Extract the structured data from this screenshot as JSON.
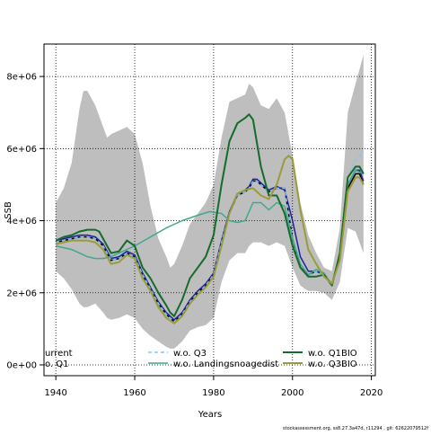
{
  "chart_data": {
    "type": "line",
    "xlabel": "Years",
    "ylabel": "SSB",
    "xlim": [
      1937,
      2021
    ],
    "ylim": [
      -300000,
      8900000
    ],
    "x_ticks": [
      {
        "value": 1940,
        "label": "1940"
      },
      {
        "value": 1960,
        "label": "1960"
      },
      {
        "value": 1980,
        "label": "1980"
      },
      {
        "value": 2000,
        "label": "2000"
      },
      {
        "value": 2020,
        "label": "2020"
      }
    ],
    "y_ticks": [
      {
        "value": 0,
        "label": "0e+00"
      },
      {
        "value": 2000000,
        "label": "2e+06"
      },
      {
        "value": 4000000,
        "label": "4e+06"
      },
      {
        "value": 6000000,
        "label": "6e+06"
      },
      {
        "value": 8000000,
        "label": "8e+06"
      }
    ],
    "grid": true,
    "legend_position": "bottom",
    "footer": "stockassessment.org, ss8.27.3a47d, r11294 , git: 62622079512f",
    "band": {
      "color": "#bebebe",
      "x": [
        1940,
        1942,
        1944,
        1946,
        1947,
        1948,
        1950,
        1952,
        1953,
        1954,
        1956,
        1958,
        1960,
        1962,
        1964,
        1966,
        1968,
        1969,
        1970,
        1972,
        1974,
        1976,
        1978,
        1980,
        1982,
        1984,
        1986,
        1988,
        1989,
        1990,
        1992,
        1994,
        1996,
        1998,
        2000,
        2002,
        2004,
        2006,
        2008,
        2010,
        2012,
        2014,
        2016,
        2018
      ],
      "upper": [
        4500000,
        4900000,
        5600000,
        7100000,
        7600000,
        7600000,
        7200000,
        6600000,
        6300000,
        6400000,
        6500000,
        6600000,
        6400000,
        5600000,
        4400000,
        3500000,
        3000000,
        2700000,
        2800000,
        3300000,
        3900000,
        4200000,
        4500000,
        5000000,
        6300000,
        7300000,
        7400000,
        7500000,
        7800000,
        7700000,
        7200000,
        7100000,
        7400000,
        7000000,
        5800000,
        4500000,
        3600000,
        3100000,
        2700000,
        2600000,
        3800000,
        7000000,
        7800000,
        8600000
      ],
      "lower": [
        2600000,
        2400000,
        2100000,
        1700000,
        1600000,
        1600000,
        1700000,
        1450000,
        1300000,
        1250000,
        1300000,
        1400000,
        1300000,
        1000000,
        800000,
        650000,
        500000,
        450000,
        450000,
        650000,
        950000,
        1050000,
        1100000,
        1300000,
        2300000,
        2900000,
        3100000,
        3100000,
        3300000,
        3400000,
        3400000,
        3300000,
        3400000,
        3300000,
        2700000,
        2200000,
        2050000,
        2050000,
        2000000,
        1800000,
        2300000,
        3800000,
        3700000,
        3100000
      ]
    },
    "series": [
      {
        "name": "urrent",
        "color": "#000000",
        "dash": "",
        "x": [
          1940,
          1942,
          1944,
          1946,
          1948,
          1950,
          1952,
          1954,
          1956,
          1958,
          1960,
          1962,
          1964,
          1966,
          1968,
          1970,
          1972,
          1974,
          1976,
          1978,
          1980,
          1982,
          1984,
          1986,
          1988,
          1989,
          1990,
          1991,
          1992,
          1994,
          1996,
          1998,
          2000,
          2002,
          2004,
          2006,
          2008,
          2010,
          2012,
          2014,
          2016,
          2017,
          2018
        ],
        "y": [
          3400000,
          3450000,
          3500000,
          3550000,
          3550000,
          3500000,
          3300000,
          2900000,
          2950000,
          3100000,
          3000000,
          2500000,
          2100000,
          1700000,
          1400000,
          1200000,
          1400000,
          1750000,
          2000000,
          2200000,
          2500000,
          3400000,
          4200000,
          4700000,
          4800000,
          4900000,
          5100000,
          5100000,
          5000000,
          4800000,
          4900000,
          4900000,
          3500000,
          2700000,
          2500000,
          2600000,
          2500000,
          2200000,
          3000000,
          4900000,
          5300000,
          5300000,
          5000000
        ]
      },
      {
        "name": "o. Q1",
        "color": "#2020a0",
        "dash": "",
        "x": [
          1940,
          1942,
          1944,
          1946,
          1948,
          1950,
          1952,
          1954,
          1956,
          1958,
          1960,
          1962,
          1964,
          1966,
          1968,
          1970,
          1972,
          1974,
          1976,
          1978,
          1980,
          1982,
          1984,
          1986,
          1988,
          1989,
          1990,
          1991,
          1992,
          1994,
          1996,
          1998,
          2000,
          2002,
          2004,
          2006,
          2008,
          2010,
          2012,
          2014,
          2016,
          2017,
          2018
        ],
        "y": [
          3450000,
          3500000,
          3550000,
          3600000,
          3600000,
          3550000,
          3350000,
          2950000,
          3000000,
          3150000,
          3050000,
          2550000,
          2150000,
          1750000,
          1450000,
          1250000,
          1450000,
          1800000,
          2050000,
          2250000,
          2550000,
          3450000,
          4250000,
          4750000,
          4850000,
          4950000,
          5150000,
          5150000,
          5050000,
          4850000,
          4950000,
          4850000,
          4000000,
          3000000,
          2600000,
          2600000,
          2500000,
          2250000,
          3050000,
          5000000,
          5400000,
          5400000,
          5100000
        ]
      },
      {
        "name": "w.o. Q3",
        "color": "#80c8e8",
        "dash": "4,3",
        "x": [
          1940,
          1942,
          1944,
          1946,
          1948,
          1950,
          1952,
          1954,
          1956,
          1958,
          1960,
          1962,
          1964,
          1966,
          1968,
          1970,
          1972,
          1974,
          1976,
          1978,
          1980,
          1982,
          1984,
          1986,
          1988,
          1989,
          1990,
          1991,
          1992,
          1994,
          1996,
          1998,
          2000,
          2002,
          2004,
          2006,
          2008,
          2010,
          2012,
          2014,
          2016,
          2017,
          2018
        ],
        "y": [
          3400000,
          3450000,
          3500000,
          3550000,
          3550000,
          3500000,
          3300000,
          2900000,
          2950000,
          3100000,
          3000000,
          2500000,
          2100000,
          1700000,
          1400000,
          1200000,
          1400000,
          1750000,
          2000000,
          2200000,
          2500000,
          3400000,
          4200000,
          4700000,
          4800000,
          4900000,
          5100000,
          5100000,
          5000000,
          4800000,
          4900000,
          4900000,
          3500000,
          2700000,
          2500000,
          2600000,
          2500000,
          2200000,
          3100000,
          5200000,
          5700000,
          5800000,
          5900000
        ]
      },
      {
        "name": "w.o. Landingsnoagedist",
        "color": "#3fa88e",
        "dash": "",
        "x": [
          1940,
          1944,
          1948,
          1950,
          1952,
          1954,
          1956,
          1960,
          1964,
          1968,
          1972,
          1976,
          1979,
          1982,
          1984,
          1986,
          1988,
          1990,
          1992,
          1994,
          1996,
          1998,
          2000,
          2002,
          2004,
          2006,
          2008,
          2010,
          2012,
          2014,
          2016,
          2018
        ],
        "y": [
          3300000,
          3200000,
          3000000,
          2950000,
          2950000,
          3000000,
          3100000,
          3300000,
          3550000,
          3800000,
          4000000,
          4150000,
          4250000,
          4200000,
          4000000,
          3950000,
          4000000,
          4500000,
          4500000,
          4300000,
          4500000,
          4400000,
          3500000,
          2800000,
          2500000,
          2650000,
          2550000,
          2200000,
          3100000,
          5000000,
          5400000,
          5300000
        ]
      },
      {
        "name": "w.o. Q1BIO",
        "color": "#146b2a",
        "dash": "",
        "width": 2,
        "x": [
          1940,
          1942,
          1944,
          1946,
          1948,
          1950,
          1951,
          1952,
          1954,
          1956,
          1958,
          1960,
          1962,
          1964,
          1966,
          1968,
          1969,
          1970,
          1972,
          1974,
          1976,
          1978,
          1980,
          1982,
          1984,
          1986,
          1988,
          1989,
          1990,
          1992,
          1994,
          1996,
          1998,
          2000,
          2002,
          2004,
          2006,
          2008,
          2010,
          2012,
          2014,
          2016,
          2017,
          2018
        ],
        "y": [
          3450000,
          3550000,
          3600000,
          3700000,
          3750000,
          3750000,
          3700000,
          3500000,
          3100000,
          3150000,
          3450000,
          3300000,
          2700000,
          2400000,
          2000000,
          1650000,
          1450000,
          1350000,
          1800000,
          2400000,
          2700000,
          3000000,
          3600000,
          5000000,
          6200000,
          6700000,
          6850000,
          6950000,
          6800000,
          5500000,
          4700000,
          4700000,
          4200000,
          3300000,
          2700000,
          2450000,
          2450000,
          2500000,
          2200000,
          3100000,
          5200000,
          5500000,
          5500000,
          5300000
        ]
      },
      {
        "name": "w.o. Q3BIO",
        "color": "#9b9b3a",
        "dash": "",
        "width": 2,
        "x": [
          1940,
          1942,
          1944,
          1946,
          1948,
          1950,
          1952,
          1954,
          1956,
          1958,
          1960,
          1962,
          1964,
          1966,
          1968,
          1970,
          1972,
          1974,
          1976,
          1978,
          1980,
          1982,
          1984,
          1986,
          1988,
          1990,
          1992,
          1994,
          1996,
          1998,
          1999,
          2000,
          2002,
          2004,
          2006,
          2008,
          2010,
          2012,
          2014,
          2016,
          2017,
          2018
        ],
        "y": [
          3350000,
          3400000,
          3450000,
          3450000,
          3450000,
          3400000,
          3200000,
          2800000,
          2850000,
          3050000,
          2950000,
          2400000,
          2050000,
          1600000,
          1300000,
          1150000,
          1350000,
          1700000,
          1950000,
          2150000,
          2450000,
          3300000,
          4200000,
          4750000,
          4850000,
          4900000,
          4700000,
          4600000,
          5000000,
          5700000,
          5800000,
          5700000,
          4300000,
          3200000,
          2800000,
          2450000,
          2250000,
          2900000,
          4800000,
          5200000,
          5200000,
          5000000
        ]
      }
    ]
  }
}
